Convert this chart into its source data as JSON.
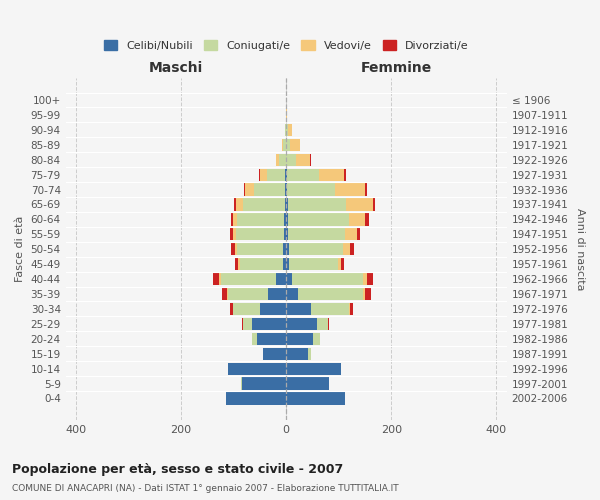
{
  "age_groups": [
    "0-4",
    "5-9",
    "10-14",
    "15-19",
    "20-24",
    "25-29",
    "30-34",
    "35-39",
    "40-44",
    "45-49",
    "50-54",
    "55-59",
    "60-64",
    "65-69",
    "70-74",
    "75-79",
    "80-84",
    "85-89",
    "90-94",
    "95-99",
    "100+"
  ],
  "birth_years": [
    "2002-2006",
    "1997-2001",
    "1992-1996",
    "1987-1991",
    "1982-1986",
    "1977-1981",
    "1972-1976",
    "1967-1971",
    "1962-1966",
    "1957-1961",
    "1952-1956",
    "1947-1951",
    "1942-1946",
    "1937-1941",
    "1932-1936",
    "1927-1931",
    "1922-1926",
    "1917-1921",
    "1912-1916",
    "1907-1911",
    "≤ 1906"
  ],
  "male_celibi": [
    115,
    85,
    110,
    45,
    55,
    65,
    50,
    35,
    20,
    6,
    6,
    4,
    4,
    3,
    2,
    2,
    0,
    0,
    0,
    0,
    0
  ],
  "male_coniugati": [
    0,
    2,
    0,
    0,
    10,
    18,
    52,
    75,
    105,
    82,
    88,
    92,
    90,
    80,
    60,
    35,
    14,
    6,
    2,
    0,
    0
  ],
  "male_vedovi": [
    0,
    0,
    0,
    0,
    0,
    0,
    0,
    2,
    3,
    3,
    4,
    5,
    8,
    12,
    16,
    12,
    6,
    2,
    0,
    0,
    0
  ],
  "male_divorziati": [
    0,
    0,
    0,
    0,
    0,
    2,
    5,
    10,
    12,
    6,
    7,
    6,
    3,
    4,
    3,
    2,
    0,
    0,
    0,
    0,
    0
  ],
  "fem_nubili": [
    112,
    82,
    105,
    42,
    52,
    58,
    48,
    22,
    12,
    6,
    6,
    4,
    4,
    3,
    2,
    2,
    0,
    0,
    0,
    0,
    0
  ],
  "fem_coniugate": [
    0,
    0,
    0,
    6,
    12,
    22,
    72,
    125,
    135,
    92,
    103,
    108,
    115,
    110,
    90,
    60,
    18,
    8,
    3,
    0,
    0
  ],
  "fem_vedove": [
    0,
    0,
    0,
    0,
    0,
    0,
    2,
    4,
    6,
    6,
    12,
    22,
    32,
    52,
    58,
    48,
    28,
    18,
    8,
    2,
    0
  ],
  "fem_divorziate": [
    0,
    0,
    0,
    0,
    0,
    2,
    6,
    10,
    12,
    7,
    9,
    7,
    6,
    5,
    4,
    3,
    2,
    0,
    0,
    0,
    0
  ],
  "colors_celibi": "#3a6ea5",
  "colors_coniugati": "#c5d9a0",
  "colors_vedovi": "#f5c87a",
  "colors_divorziati": "#cc2222",
  "xlim": [
    -420,
    420
  ],
  "xticks": [
    -400,
    -200,
    0,
    200,
    400
  ],
  "title": "Popolazione per età, sesso e stato civile - 2007",
  "subtitle": "COMUNE DI ANACAPRI (NA) - Dati ISTAT 1° gennaio 2007 - Elaborazione TUTTITALIA.IT",
  "ylabel_left": "Fasce di età",
  "ylabel_right": "Anni di nascita",
  "header_male": "Maschi",
  "header_female": "Femmine",
  "legend_labels": [
    "Celibi/Nubili",
    "Coniugati/e",
    "Vedovi/e",
    "Divorziati/e"
  ],
  "bg_color": "#f5f5f5",
  "bar_height": 0.82
}
